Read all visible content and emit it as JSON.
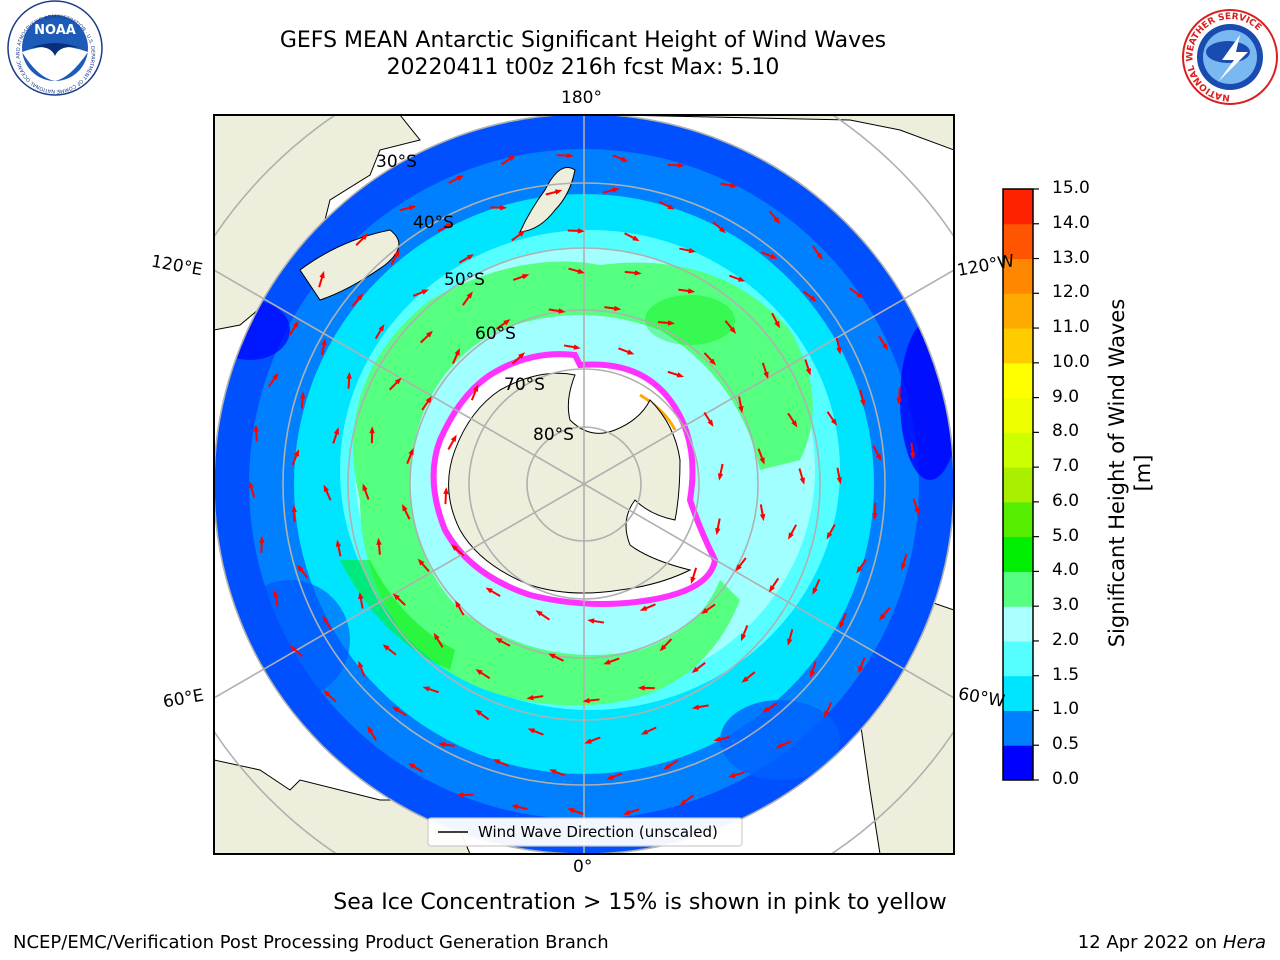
{
  "header": {
    "title_line1": "GEFS MEAN Antarctic Significant Height of Wind Waves",
    "title_line2": "20220411 t00z 216h fcst   Max: 5.10"
  },
  "logos": {
    "left": {
      "name": "NOAA",
      "ring_text": "NATIONAL OCEANIC AND ATMOSPHERIC ADMINISTRATION · U.S. DEPARTMENT OF COMMERCE"
    },
    "right": {
      "ring_text": "NATIONAL WEATHER SERVICE"
    }
  },
  "map": {
    "longitude_labels": {
      "top": "180°",
      "bottom": "0°",
      "left_upper": "120°E",
      "left_lower": "60°E",
      "right_upper": "120°W",
      "right_lower": "60°W"
    },
    "latitude_labels": [
      "30°S",
      "40°S",
      "50°S",
      "60°S",
      "70°S",
      "80°S"
    ],
    "legend_label": "Wind Wave Direction (unscaled)",
    "colors": {
      "land": "#EEEEDC",
      "ice_edge": "#FF33FF",
      "arrow": "#FF0000",
      "grid": "#B0B0B0"
    }
  },
  "colorbar": {
    "label": "Significant Height of Wind Waves [m]",
    "ticks": [
      "15.0",
      "14.0",
      "13.0",
      "12.0",
      "11.0",
      "10.0",
      "9.0",
      "8.0",
      "7.0",
      "6.0",
      "5.0",
      "4.0",
      "3.0",
      "2.0",
      "1.5",
      "1.0",
      "0.5",
      "0.0"
    ],
    "colors": [
      "#0000FF",
      "#0080FF",
      "#00E5FF",
      "#55FFFF",
      "#AAFFFF",
      "#55FF7F",
      "#00EE00",
      "#55EE00",
      "#AAEE00",
      "#CCFF00",
      "#EEFF00",
      "#FFFF00",
      "#FFCC00",
      "#FFAA00",
      "#FF8800",
      "#FF5500",
      "#FF2200"
    ]
  },
  "footer": {
    "note": "Sea Ice Concentration > 15% is shown in pink to yellow",
    "left": "NCEP/EMC/Verification Post Processing Product Generation Branch",
    "right_prefix": "12 Apr 2022 on ",
    "right_italic": "Hera"
  }
}
